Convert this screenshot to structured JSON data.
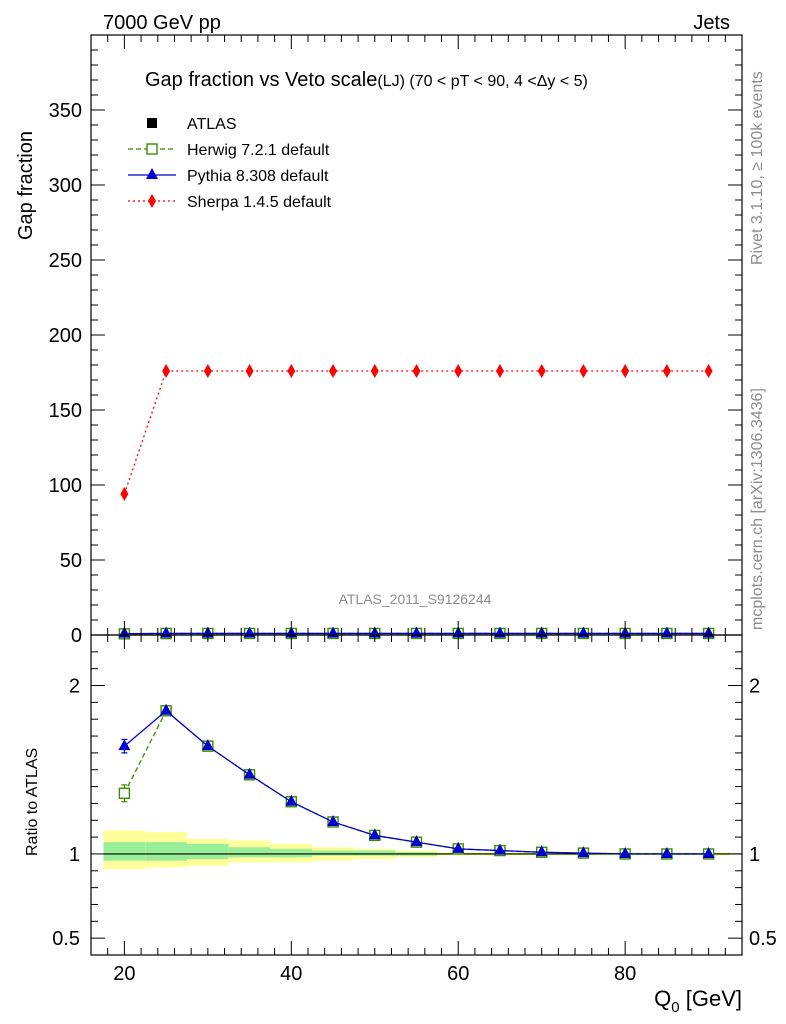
{
  "header": {
    "left": "7000 GeV pp",
    "right": "Jets"
  },
  "side_labels": {
    "rivet": "Rivet 3.1.10, ≥ 100k events",
    "mcplots": "mcplots.cern.ch [arXiv:1306.3436]"
  },
  "chart_data": {
    "type": "line",
    "title": "Gap fraction vs Veto scale",
    "subtitle": "(LJ) (70 < pT <  90, 4 <Δy < 5)",
    "watermark": "ATLAS_2011_S9126244",
    "x": [
      20,
      25,
      30,
      35,
      40,
      45,
      50,
      55,
      60,
      65,
      70,
      75,
      80,
      85,
      90
    ],
    "xlabel": "Q",
    "xlabel_sub": "0",
    "xlabel_unit": " [GeV]",
    "xlim": [
      16,
      94
    ],
    "xticks": [
      20,
      40,
      60,
      80
    ],
    "main": {
      "ylabel": "Gap fraction",
      "ylim": [
        0,
        400
      ],
      "yticks": [
        0,
        50,
        100,
        150,
        200,
        250,
        300,
        350
      ],
      "series": [
        {
          "name": "ATLAS",
          "color": "#000000",
          "style": "points",
          "marker": "square",
          "values": [
            0.57,
            0.56,
            0.66,
            0.75,
            0.82,
            0.88,
            0.92,
            0.95,
            0.97,
            0.98,
            0.99,
            0.99,
            1.0,
            1.0,
            1.0
          ]
        },
        {
          "name": "Herwig 7.2.1 default",
          "color": "#3b8c00",
          "style": "dashed",
          "marker": "open-square",
          "values": [
            0.77,
            1.03,
            1.03,
            1.03,
            1.03,
            1.03,
            1.03,
            1.03,
            1.03,
            1.03,
            1.03,
            1.03,
            1.03,
            1.03,
            1.03
          ]
        },
        {
          "name": "Pythia 8.308 default",
          "color": "#0000cc",
          "style": "solid",
          "marker": "triangle",
          "values": [
            0.92,
            1.03,
            1.03,
            1.03,
            1.03,
            1.03,
            1.03,
            1.03,
            1.03,
            1.03,
            1.03,
            1.03,
            1.03,
            1.03,
            1.03
          ]
        },
        {
          "name": "Sherpa 1.4.5 default",
          "color": "#ff0000",
          "style": "dotted",
          "marker": "diamond",
          "values": [
            94,
            176,
            176,
            176,
            176,
            176,
            176,
            176,
            176,
            176,
            176,
            176,
            176,
            176,
            176
          ]
        }
      ]
    },
    "ratio": {
      "ylabel": "Ratio to ATLAS",
      "ylim": [
        0.4,
        2.3
      ],
      "yticks": [
        0.5,
        1,
        2
      ],
      "ytick_labels": [
        "0.5",
        "1",
        "2"
      ],
      "reference": 1,
      "bands": [
        {
          "xmin": 17.5,
          "xmax": 22.5,
          "yellow": [
            0.91,
            1.14
          ],
          "green": [
            0.96,
            1.07
          ]
        },
        {
          "xmin": 22.5,
          "xmax": 27.5,
          "yellow": [
            0.92,
            1.13
          ],
          "green": [
            0.96,
            1.07
          ]
        },
        {
          "xmin": 27.5,
          "xmax": 32.5,
          "yellow": [
            0.93,
            1.09
          ],
          "green": [
            0.97,
            1.06
          ]
        },
        {
          "xmin": 32.5,
          "xmax": 37.5,
          "yellow": [
            0.95,
            1.08
          ],
          "green": [
            0.98,
            1.04
          ]
        },
        {
          "xmin": 37.5,
          "xmax": 42.5,
          "yellow": [
            0.95,
            1.06
          ],
          "green": [
            0.98,
            1.03
          ]
        },
        {
          "xmin": 42.5,
          "xmax": 47.5,
          "yellow": [
            0.96,
            1.04
          ],
          "green": [
            0.99,
            1.02
          ]
        },
        {
          "xmin": 47.5,
          "xmax": 52.5,
          "yellow": [
            0.97,
            1.03
          ],
          "green": [
            0.99,
            1.02
          ]
        },
        {
          "xmin": 52.5,
          "xmax": 57.5,
          "yellow": [
            0.98,
            1.02
          ],
          "green": [
            0.99,
            1.01
          ]
        },
        {
          "xmin": 57.5,
          "xmax": 92.5,
          "yellow": [
            0.99,
            1.01
          ],
          "green": [
            0.995,
            1.005
          ]
        }
      ],
      "series": [
        {
          "name": "Herwig 7.2.1 default",
          "color": "#3b8c00",
          "style": "dashed",
          "marker": "open-square",
          "values": [
            1.36,
            1.85,
            1.64,
            1.47,
            1.31,
            1.19,
            1.11,
            1.07,
            1.03,
            1.02,
            1.01,
            1.005,
            1.0,
            1.0,
            1.0
          ],
          "errors": [
            0.05,
            0.01,
            0.01,
            0.01,
            0.01,
            0.01,
            0.005,
            0.005,
            0.005,
            0.005,
            0.005,
            0.005,
            0.005,
            0.005,
            0.005
          ]
        },
        {
          "name": "Pythia 8.308 default",
          "color": "#0000cc",
          "style": "solid",
          "marker": "triangle",
          "values": [
            1.64,
            1.85,
            1.64,
            1.47,
            1.31,
            1.19,
            1.11,
            1.07,
            1.03,
            1.02,
            1.01,
            1.005,
            1.0,
            1.0,
            1.0
          ],
          "errors": [
            0.04,
            0.01,
            0.01,
            0.01,
            0.01,
            0.01,
            0.005,
            0.005,
            0.005,
            0.005,
            0.005,
            0.005,
            0.005,
            0.005,
            0.005
          ]
        }
      ]
    }
  }
}
